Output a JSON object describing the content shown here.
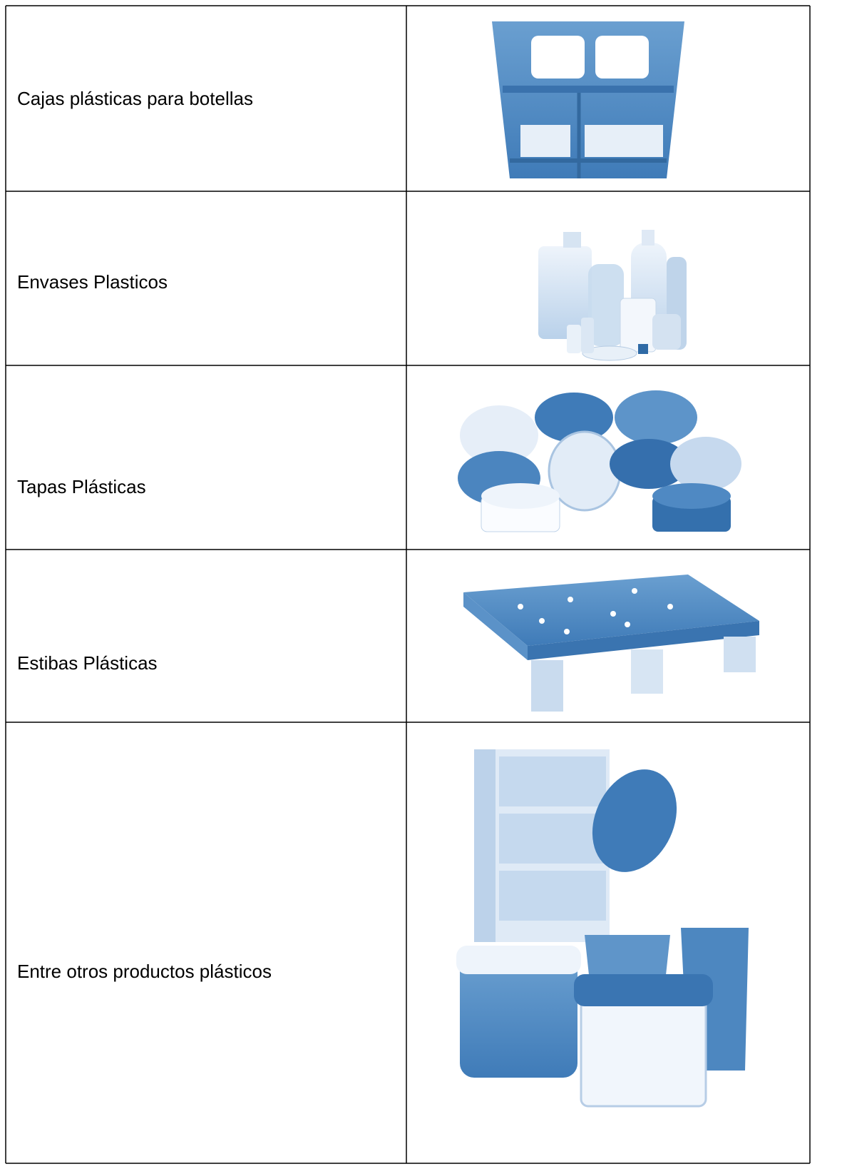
{
  "table": {
    "rows": [
      {
        "label": "Cajas plásticas para botellas"
      },
      {
        "label": "Envases Plasticos"
      },
      {
        "label": "Tapas Plásticas"
      },
      {
        "label": "Estibas Plásticas"
      },
      {
        "label": "Entre otros productos plásticos"
      }
    ]
  }
}
